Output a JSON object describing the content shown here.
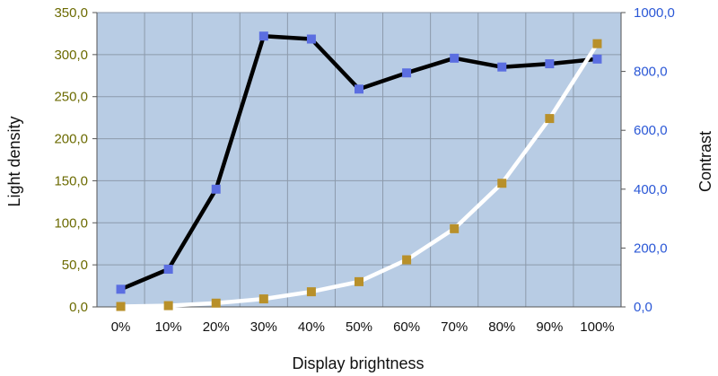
{
  "chart_data": {
    "type": "line",
    "title": "",
    "xlabel": "Display brightness",
    "ylabel": "Light density",
    "y2label": "Contrast",
    "categories": [
      "0%",
      "10%",
      "20%",
      "30%",
      "40%",
      "50%",
      "60%",
      "70%",
      "80%",
      "90%",
      "100%"
    ],
    "ylim": [
      0,
      350
    ],
    "y2lim": [
      0,
      1000
    ],
    "yticks": [
      "0,0",
      "50,0",
      "100,0",
      "150,0",
      "200,0",
      "250,0",
      "300,0",
      "350,0"
    ],
    "y2ticks": [
      "0,0",
      "200,0",
      "400,0",
      "600,0",
      "800,0",
      "1000,0"
    ],
    "grid": true,
    "series": [
      {
        "axis": "right",
        "line_color": "#000000",
        "marker_color": "#5b6ee1",
        "values": [
          60,
          128,
          400,
          920,
          910,
          740,
          795,
          845,
          815,
          826,
          842
        ]
      },
      {
        "axis": "left",
        "line_color": "#ffffff",
        "marker_color": "#b8902a",
        "values": [
          0.5,
          1.5,
          4.5,
          9.5,
          18,
          30,
          56,
          93,
          147,
          224,
          313
        ]
      }
    ],
    "colors": {
      "plot_bg": "#b8cce4",
      "grid": "#8c9aab",
      "left_tick_color": "#6b6a00",
      "right_tick_color": "#2a57d6"
    }
  }
}
